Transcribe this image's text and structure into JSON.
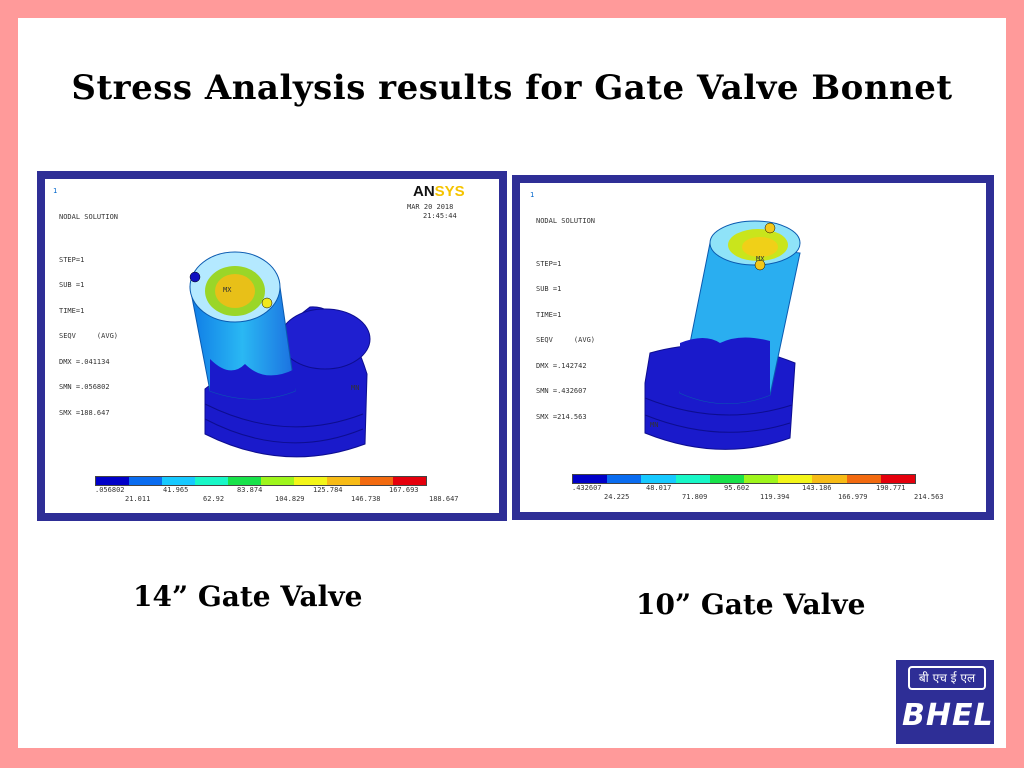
{
  "slide": {
    "title": "Stress Analysis results for Gate Valve Bonnet",
    "colors": {
      "background": "#ff9a9a",
      "panel_border": "#2e2e96",
      "logo": "#2e2e96"
    }
  },
  "panels": [
    {
      "caption": "14” Gate Valve",
      "window_number": "1",
      "header": [
        "NODAL SOLUTION",
        "",
        "STEP=1",
        "SUB =1",
        "TIME=1",
        "SEQV     (AVG)",
        "DMX =.041134",
        "SMN =.056802",
        "SMX =188.647"
      ],
      "brand": {
        "an": "AN",
        "sys": "SYS"
      },
      "date": "MAR 20 2018",
      "time": "21:45:44",
      "mx_label": "MX",
      "mn_label": "MN",
      "legend_top": [
        ".056802",
        "41.965",
        "83.874",
        "125.784",
        "167.693"
      ],
      "legend_bottom": [
        "21.011",
        "62.92",
        "104.829",
        "146.738",
        "188.647"
      ]
    },
    {
      "caption": "10” Gate Valve",
      "window_number": "1",
      "header": [
        "NODAL SOLUTION",
        "",
        "STEP=1",
        "SUB =1",
        "TIME=1",
        "SEQV     (AVG)",
        "DMX =.142742",
        "SMN =.432607",
        "SMX =214.563"
      ],
      "mx_label": "MX",
      "mn_label": "MN",
      "legend_top": [
        ".432607",
        "48.017",
        "95.602",
        "143.186",
        "190.771"
      ],
      "legend_bottom": [
        "24.225",
        "71.809",
        "119.394",
        "166.979",
        "214.563"
      ]
    }
  ],
  "legend_colors": [
    "#0000c8",
    "#0a6cf0",
    "#17c9ff",
    "#18f7c7",
    "#18e24a",
    "#9ef51c",
    "#f3f519",
    "#f7bb16",
    "#f26a10",
    "#e5000c"
  ],
  "logo": {
    "hindi": "बी एच ई एल",
    "text": "BHEL"
  }
}
